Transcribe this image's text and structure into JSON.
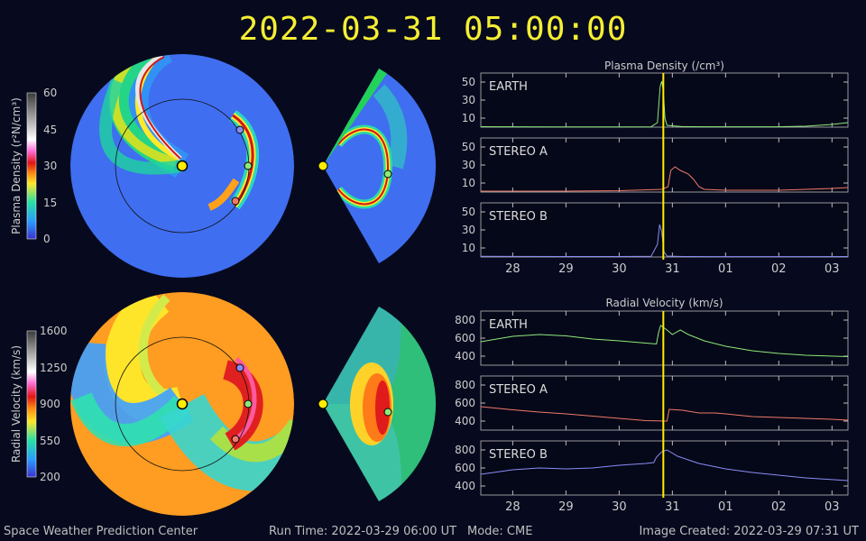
{
  "timestamp": "2022-03-31 05:00:00",
  "footer": {
    "org": "Space Weather Prediction Center",
    "run_time": "Run Time: 2022-03-29 06:00 UT",
    "mode": "Mode: CME",
    "image_created": "Image Created: 2022-03-29 07:31 UT"
  },
  "colors": {
    "earth": "#8fe87a",
    "stereo_a": "#f07a6a",
    "stereo_b": "#8a8cf5",
    "marker": "#ffee00"
  },
  "colorbars": {
    "density": {
      "label": "Plasma Density (r²N/cm³)",
      "ticks": [
        "60",
        "45",
        "30",
        "15",
        "0"
      ]
    },
    "velocity": {
      "label": "Radial Velocity (km/s)",
      "ticks": [
        "1600",
        "1250",
        "900",
        "550",
        "200"
      ]
    }
  },
  "chart_data": [
    {
      "type": "line",
      "title": "Plasma Density (/cm³)",
      "x_tick_labels": [
        "28",
        "29",
        "30",
        "31",
        "01",
        "02",
        "03"
      ],
      "x_range_days": [
        27.4,
        34.3
      ],
      "current_time_day": 30.83,
      "panels": [
        {
          "name": "EARTH",
          "ylim": [
            0,
            60
          ],
          "yticks": [
            10,
            30,
            50
          ],
          "points": [
            [
              27.4,
              0.5
            ],
            [
              28.0,
              0.4
            ],
            [
              29.0,
              0.3
            ],
            [
              30.0,
              0.3
            ],
            [
              30.6,
              0.4
            ],
            [
              30.72,
              5
            ],
            [
              30.77,
              45
            ],
            [
              30.8,
              51
            ],
            [
              30.83,
              40
            ],
            [
              30.86,
              10
            ],
            [
              30.9,
              2
            ],
            [
              31.2,
              0.5
            ],
            [
              32.0,
              0.4
            ],
            [
              33.0,
              0.4
            ],
            [
              33.5,
              1
            ],
            [
              34.0,
              3
            ],
            [
              34.3,
              5
            ]
          ]
        },
        {
          "name": "STEREO A",
          "ylim": [
            0,
            60
          ],
          "yticks": [
            10,
            30,
            50
          ],
          "points": [
            [
              27.4,
              1
            ],
            [
              28.0,
              1
            ],
            [
              29.0,
              1
            ],
            [
              30.0,
              1.5
            ],
            [
              30.8,
              3
            ],
            [
              30.92,
              6
            ],
            [
              30.97,
              24
            ],
            [
              31.05,
              28
            ],
            [
              31.15,
              24
            ],
            [
              31.3,
              20
            ],
            [
              31.4,
              14
            ],
            [
              31.5,
              6
            ],
            [
              31.6,
              3
            ],
            [
              32.0,
              2
            ],
            [
              33.0,
              2
            ],
            [
              33.5,
              3
            ],
            [
              34.0,
              4
            ],
            [
              34.3,
              5
            ]
          ]
        },
        {
          "name": "STEREO B",
          "ylim": [
            0,
            60
          ],
          "yticks": [
            10,
            30,
            50
          ],
          "points": [
            [
              27.4,
              0.8
            ],
            [
              28.0,
              0.6
            ],
            [
              29.0,
              0.5
            ],
            [
              30.0,
              0.5
            ],
            [
              30.6,
              0.8
            ],
            [
              30.72,
              14
            ],
            [
              30.76,
              36
            ],
            [
              30.8,
              28
            ],
            [
              30.84,
              6
            ],
            [
              30.9,
              1
            ],
            [
              31.2,
              0.5
            ],
            [
              32.0,
              0.4
            ],
            [
              33.0,
              0.4
            ],
            [
              34.3,
              0.5
            ]
          ]
        }
      ]
    },
    {
      "type": "line",
      "title": "Radial Velocity (km/s)",
      "x_tick_labels": [
        "28",
        "29",
        "30",
        "31",
        "01",
        "02",
        "03"
      ],
      "x_range_days": [
        27.4,
        34.3
      ],
      "current_time_day": 30.83,
      "panels": [
        {
          "name": "EARTH",
          "ylim": [
            300,
            900
          ],
          "yticks": [
            400,
            600,
            800
          ],
          "points": [
            [
              27.4,
              560
            ],
            [
              28.0,
              620
            ],
            [
              28.5,
              640
            ],
            [
              29.0,
              625
            ],
            [
              29.5,
              590
            ],
            [
              30.0,
              570
            ],
            [
              30.5,
              545
            ],
            [
              30.7,
              535
            ],
            [
              30.74,
              660
            ],
            [
              30.78,
              740
            ],
            [
              30.9,
              690
            ],
            [
              31.0,
              640
            ],
            [
              31.15,
              690
            ],
            [
              31.3,
              640
            ],
            [
              31.6,
              570
            ],
            [
              32.0,
              510
            ],
            [
              32.5,
              460
            ],
            [
              33.0,
              430
            ],
            [
              33.5,
              410
            ],
            [
              34.3,
              395
            ]
          ]
        },
        {
          "name": "STEREO A",
          "ylim": [
            300,
            900
          ],
          "yticks": [
            400,
            600,
            800
          ],
          "points": [
            [
              27.4,
              560
            ],
            [
              28.0,
              525
            ],
            [
              28.5,
              500
            ],
            [
              29.0,
              480
            ],
            [
              29.5,
              455
            ],
            [
              30.0,
              430
            ],
            [
              30.5,
              405
            ],
            [
              30.9,
              400
            ],
            [
              30.94,
              530
            ],
            [
              31.2,
              520
            ],
            [
              31.5,
              490
            ],
            [
              31.8,
              490
            ],
            [
              32.0,
              480
            ],
            [
              32.5,
              450
            ],
            [
              33.0,
              440
            ],
            [
              34.0,
              420
            ],
            [
              34.3,
              410
            ]
          ]
        },
        {
          "name": "STEREO B",
          "ylim": [
            300,
            900
          ],
          "yticks": [
            400,
            600,
            800
          ],
          "points": [
            [
              27.4,
              530
            ],
            [
              28.0,
              580
            ],
            [
              28.5,
              600
            ],
            [
              29.0,
              590
            ],
            [
              29.5,
              600
            ],
            [
              30.0,
              630
            ],
            [
              30.5,
              650
            ],
            [
              30.65,
              660
            ],
            [
              30.7,
              720
            ],
            [
              30.8,
              780
            ],
            [
              30.9,
              800
            ],
            [
              31.1,
              730
            ],
            [
              31.5,
              650
            ],
            [
              32.0,
              590
            ],
            [
              32.5,
              550
            ],
            [
              33.0,
              520
            ],
            [
              33.5,
              490
            ],
            [
              34.3,
              460
            ]
          ]
        }
      ]
    }
  ]
}
